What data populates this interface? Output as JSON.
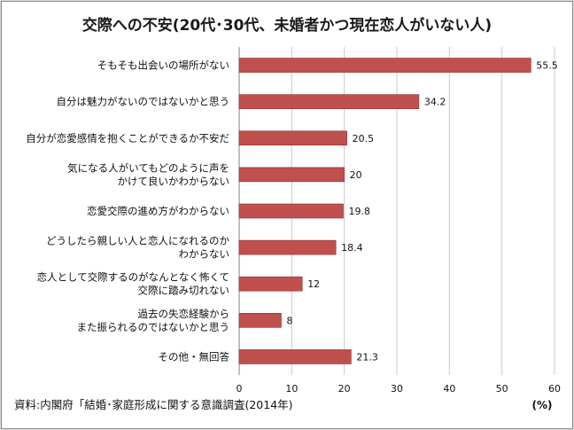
{
  "chart_data": {
    "type": "bar",
    "orientation": "horizontal",
    "title": "交際への不安(20代･30代、未婚者かつ現在恋人がいない人)",
    "categories": [
      [
        "そもそも出会いの場所がない"
      ],
      [
        "自分は魅力がないのではないかと思う"
      ],
      [
        "自分が恋愛感情を抱くことができるか不安だ"
      ],
      [
        "気になる人がいてもどのように声を",
        "かけて良いかわからない"
      ],
      [
        "恋愛交際の進め方がわからない"
      ],
      [
        "どうしたら親しい人と恋人になれるのか",
        "わからない"
      ],
      [
        "恋人として交際するのがなんとなく怖くて",
        "交際に踏み切れない"
      ],
      [
        "過去の失恋経験から",
        "また振られるのではないかと思う"
      ],
      [
        "その他・無回答"
      ]
    ],
    "values": [
      55.5,
      34.2,
      20.5,
      20,
      19.8,
      18.4,
      12,
      8,
      21.3
    ],
    "xlim": [
      0,
      60
    ],
    "xticks": [
      0,
      10,
      20,
      30,
      40,
      50,
      60
    ],
    "unit_label": "(%)",
    "grid": true,
    "colors": {
      "bar": "#c0504d",
      "bar_edge": "#8a2f2c",
      "grid": "#c8c8c8"
    }
  },
  "source": "資料:内閣府「結婚･家庭形成に関する意識調査(2014年)"
}
